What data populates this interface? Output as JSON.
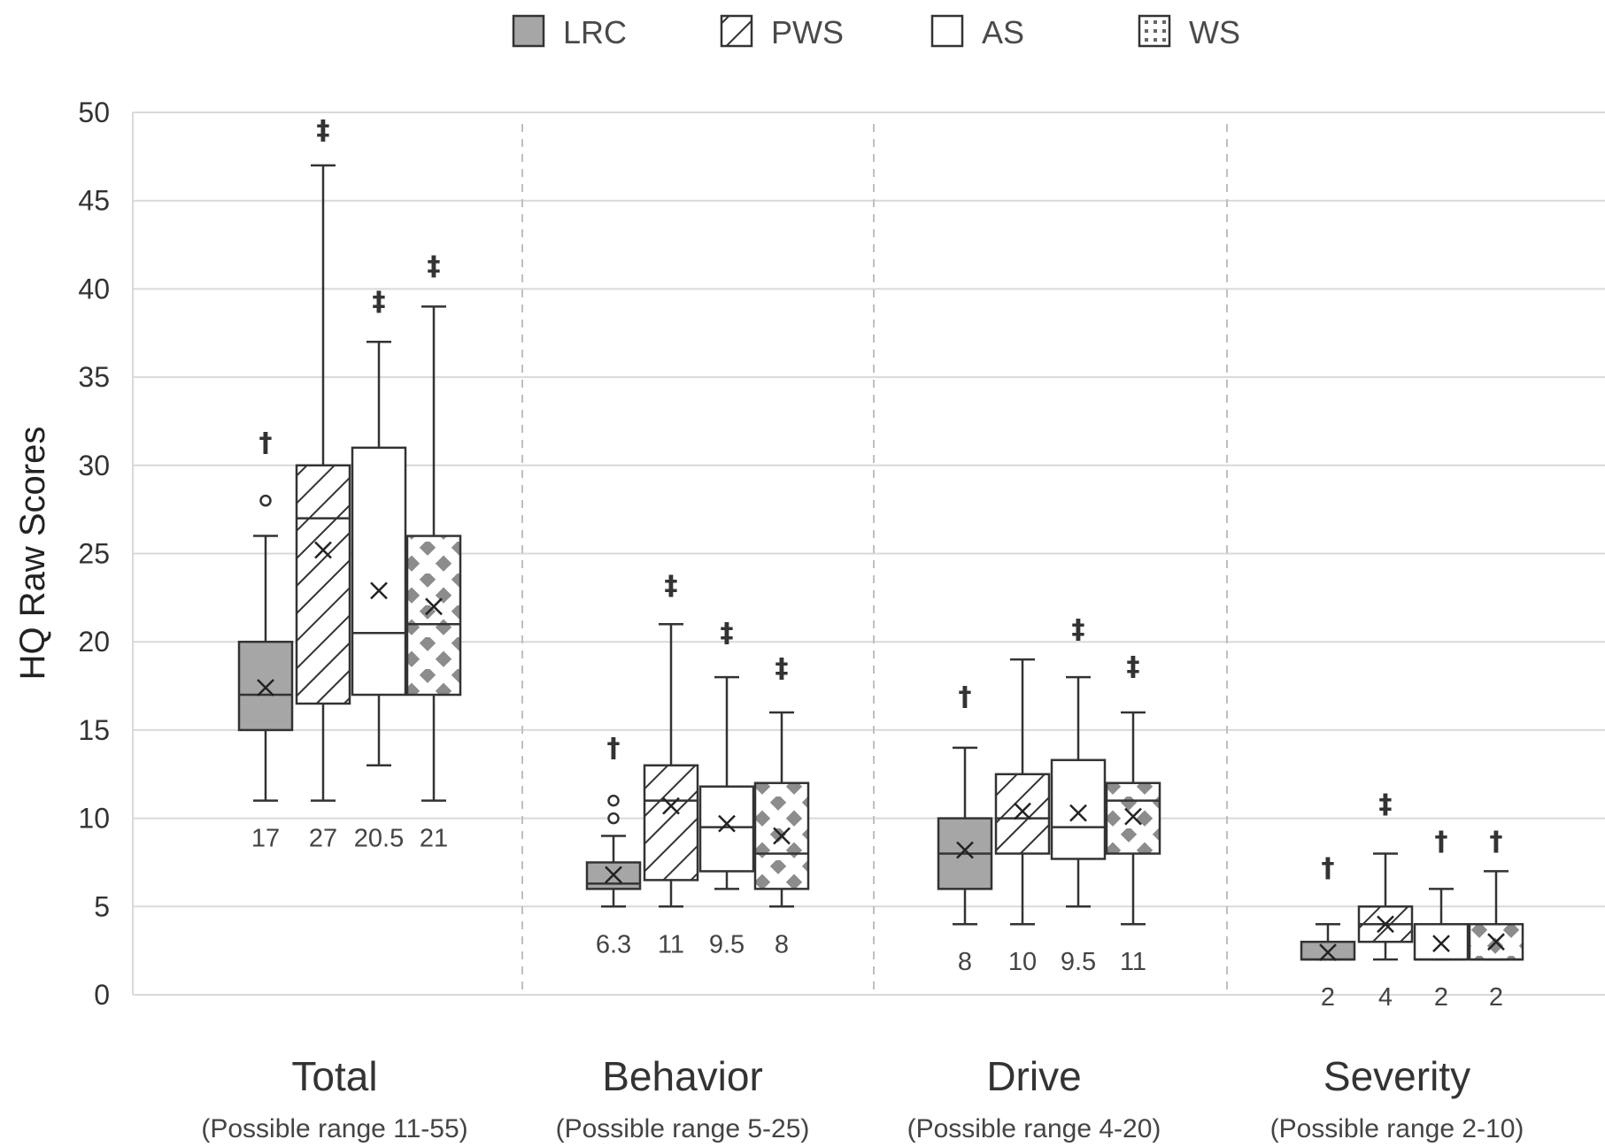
{
  "chart_data": {
    "type": "box",
    "ylabel": "HQ Raw Scores",
    "ylim": [
      0,
      50
    ],
    "yticks": [
      0,
      5,
      10,
      15,
      20,
      25,
      30,
      35,
      40,
      45,
      50
    ],
    "grid": true,
    "legend_position": "top",
    "series": [
      {
        "name": "LRC",
        "pattern": "solid-gray",
        "color": "#a6a6a6"
      },
      {
        "name": "PWS",
        "pattern": "diagonal-hatch",
        "color": "#ffffff"
      },
      {
        "name": "AS",
        "pattern": "none",
        "color": "#ffffff"
      },
      {
        "name": "WS",
        "pattern": "checker-dots",
        "color": "#ffffff"
      }
    ],
    "panels": [
      {
        "title": "Total",
        "subtitle": "(Possible range 11-55)",
        "boxes": [
          {
            "series": "LRC",
            "min": 11,
            "q1": 15,
            "median": 17,
            "q3": 20,
            "max": 26,
            "mean": 17.4,
            "outliers": [
              28
            ],
            "mark": "†",
            "mark_y": 31.3,
            "label": "17"
          },
          {
            "series": "PWS",
            "min": 11,
            "q1": 16.5,
            "median": 27,
            "q3": 30,
            "max": 47,
            "mean": 25.2,
            "outliers": [],
            "mark": "‡",
            "mark_y": 49,
            "label": "27"
          },
          {
            "series": "AS",
            "min": 13,
            "q1": 17,
            "median": 20.5,
            "q3": 31,
            "max": 37,
            "mean": 22.9,
            "outliers": [],
            "mark": "‡",
            "mark_y": 39.3,
            "label": "20.5"
          },
          {
            "series": "WS",
            "min": 11,
            "q1": 17,
            "median": 21,
            "q3": 26,
            "max": 39,
            "mean": 22,
            "outliers": [],
            "mark": "‡",
            "mark_y": 41.3,
            "label": "21"
          }
        ]
      },
      {
        "title": "Behavior",
        "subtitle": "(Possible range 5-25)",
        "boxes": [
          {
            "series": "LRC",
            "min": 5,
            "q1": 6,
            "median": 6.3,
            "q3": 7.5,
            "max": 9,
            "mean": 6.8,
            "outliers": [
              10,
              11
            ],
            "mark": "†",
            "mark_y": 14,
            "label": "6.3"
          },
          {
            "series": "PWS",
            "min": 5,
            "q1": 6.5,
            "median": 11,
            "q3": 13,
            "max": 21,
            "mean": 10.7,
            "outliers": [],
            "mark": "‡",
            "mark_y": 23.2,
            "label": "11"
          },
          {
            "series": "AS",
            "min": 6,
            "q1": 7,
            "median": 9.5,
            "q3": 11.8,
            "max": 18,
            "mean": 9.7,
            "outliers": [],
            "mark": "‡",
            "mark_y": 20.5,
            "label": "9.5"
          },
          {
            "series": "WS",
            "min": 5,
            "q1": 6,
            "median": 8,
            "q3": 12,
            "max": 16,
            "mean": 9,
            "outliers": [],
            "mark": "‡",
            "mark_y": 18.5,
            "label": "8"
          }
        ]
      },
      {
        "title": "Drive",
        "subtitle": "(Possible range 4-20)",
        "boxes": [
          {
            "series": "LRC",
            "min": 4,
            "q1": 6,
            "median": 8,
            "q3": 10,
            "max": 14,
            "mean": 8.2,
            "outliers": [],
            "mark": "†",
            "mark_y": 16.9,
            "label": "8"
          },
          {
            "series": "PWS",
            "min": 4,
            "q1": 8,
            "median": 10,
            "q3": 12.5,
            "max": 19,
            "mean": 10.4,
            "outliers": [],
            "mark": "",
            "mark_y": 0,
            "label": "10"
          },
          {
            "series": "AS",
            "min": 5,
            "q1": 7.7,
            "median": 9.5,
            "q3": 13.3,
            "max": 18,
            "mean": 10.3,
            "outliers": [],
            "mark": "‡",
            "mark_y": 20.7,
            "label": "9.5"
          },
          {
            "series": "WS",
            "min": 4,
            "q1": 8,
            "median": 11,
            "q3": 12,
            "max": 16,
            "mean": 10.1,
            "outliers": [],
            "mark": "‡",
            "mark_y": 18.6,
            "label": "11"
          }
        ]
      },
      {
        "title": "Severity",
        "subtitle": "(Possible range 2-10)",
        "boxes": [
          {
            "series": "LRC",
            "min": 2,
            "q1": 2,
            "median": 2,
            "q3": 3,
            "max": 4,
            "mean": 2.4,
            "outliers": [],
            "mark": "†",
            "mark_y": 7.2,
            "label": "2"
          },
          {
            "series": "PWS",
            "min": 2,
            "q1": 3,
            "median": 4,
            "q3": 5,
            "max": 8,
            "mean": 4,
            "outliers": [],
            "mark": "‡",
            "mark_y": 10.8,
            "label": "4"
          },
          {
            "series": "AS",
            "min": 2,
            "q1": 2,
            "median": 2,
            "q3": 4,
            "max": 6,
            "mean": 2.9,
            "outliers": [],
            "mark": "†",
            "mark_y": 8.7,
            "label": "2"
          },
          {
            "series": "WS",
            "min": 2,
            "q1": 2,
            "median": 2,
            "q3": 4,
            "max": 7,
            "mean": 3,
            "outliers": [],
            "mark": "†",
            "mark_y": 8.7,
            "label": "2"
          }
        ]
      }
    ]
  }
}
